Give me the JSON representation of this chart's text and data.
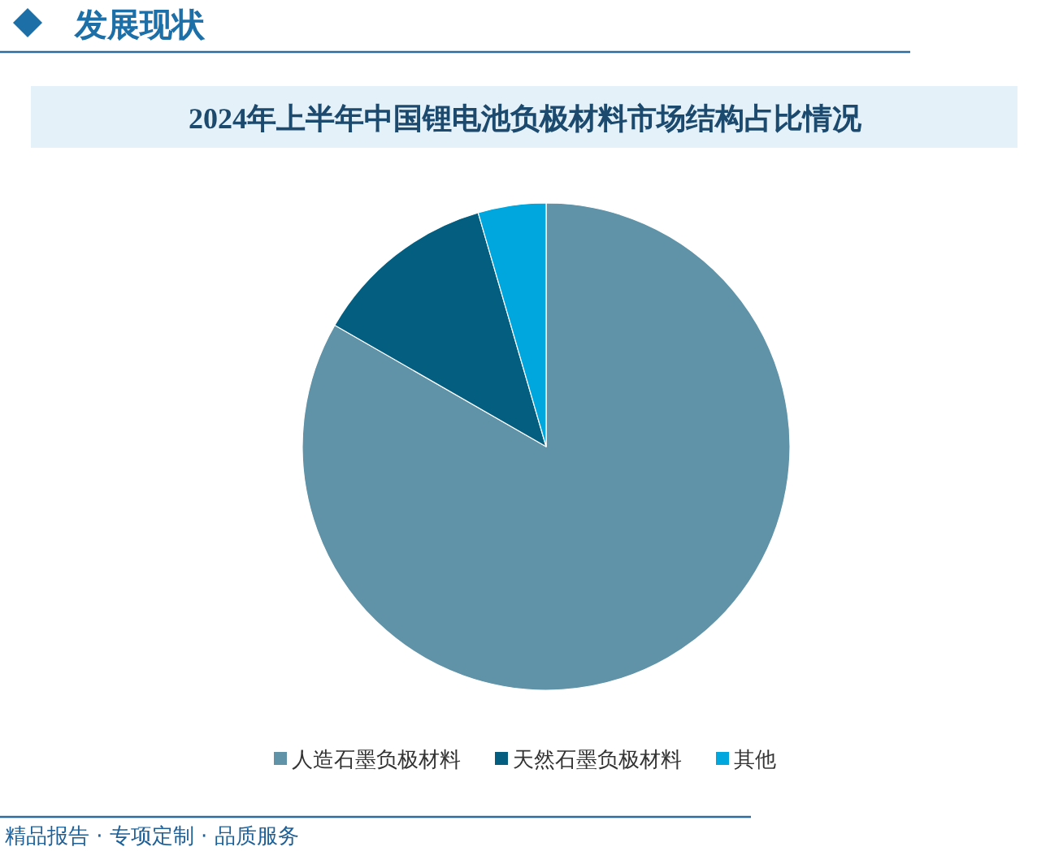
{
  "chart_data": {
    "type": "pie",
    "title": "2024年上半年中国锂电池负极材料市场结构占比情况",
    "categories": [
      "人造石墨负极材料",
      "天然石墨负极材料",
      "其他"
    ],
    "values": [
      83.3,
      12.2,
      4.5
    ],
    "colors": [
      "#6093a8",
      "#035e80",
      "#00a6de"
    ],
    "legend": "bottom",
    "annotations": [
      "发展现状",
      "精品报告 · 专项定制 · 品质服务"
    ]
  }
}
